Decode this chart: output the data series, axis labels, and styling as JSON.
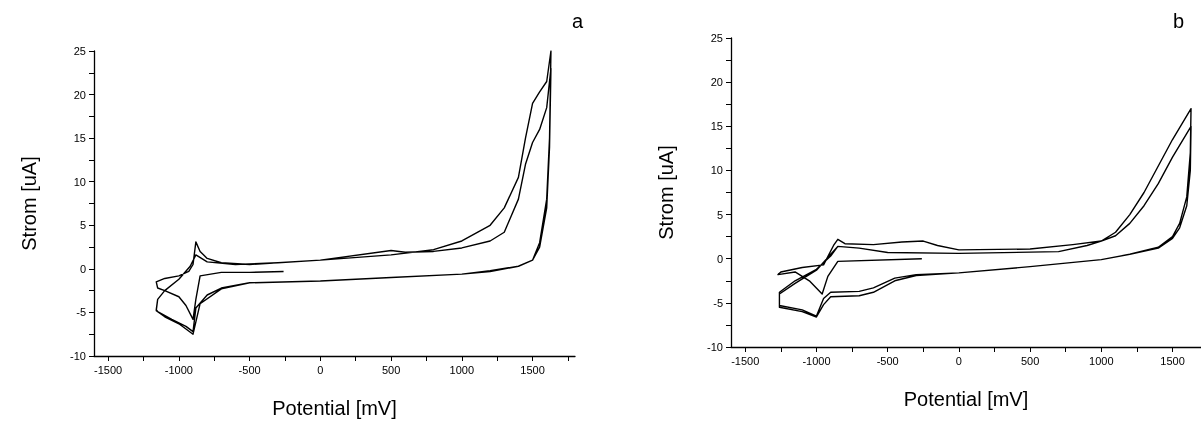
{
  "chart_data": [
    {
      "type": "line",
      "title": "a",
      "xlabel": "Potential [mV]",
      "ylabel": "Strom [uA]",
      "xlim": [
        -1600,
        1800
      ],
      "ylim": [
        -10,
        25
      ],
      "xticks": [
        -1500,
        {
          "value": -1250,
          "label": null
        },
        -1000,
        {
          "value": -750,
          "label": null
        },
        -500,
        {
          "value": -250,
          "label": null
        },
        0,
        {
          "value": 250,
          "label": null
        },
        500,
        {
          "value": 750,
          "label": null
        },
        1000,
        {
          "value": 1250,
          "label": null
        },
        1500,
        {
          "value": 1750,
          "label": null
        }
      ],
      "yticks": [
        -10,
        {
          "value": -7.5,
          "label": null
        },
        -5,
        {
          "value": -2.5,
          "label": null
        },
        0,
        {
          "value": 2.5,
          "label": null
        },
        5,
        {
          "value": 7.5,
          "label": null
        },
        10,
        {
          "value": 12.5,
          "label": null
        },
        15,
        {
          "value": 17.5,
          "label": null
        },
        20,
        {
          "value": 22.5,
          "label": null
        },
        25
      ],
      "grid": false,
      "marker": "none",
      "line_style": "solid",
      "series": [
        {
          "color": "#000000",
          "x": [
            -260,
            -500,
            -700,
            -850,
            -880,
            -900,
            -950,
            -1000,
            -1100,
            -1150,
            -1160,
            -1100,
            -1000,
            -930,
            -900,
            -880,
            -850,
            -800,
            -700,
            -500,
            0,
            500,
            800,
            1000,
            1200,
            1300,
            1400,
            1450,
            1500,
            1550,
            1600,
            1630,
            1620,
            1600,
            1550,
            1500,
            1400,
            1200,
            1000,
            500,
            0,
            -500,
            -700,
            -800,
            -880,
            -900,
            -950,
            -1050,
            -1150,
            -1160,
            -1150,
            -1100,
            -1000,
            -920,
            -880,
            -800,
            -600,
            -300,
            0,
            500,
            600,
            800,
            1000,
            1200,
            1300,
            1400,
            1450,
            1500,
            1550,
            1600,
            1630,
            1620,
            1600,
            1550,
            1500,
            1400,
            1200,
            1000,
            500,
            0,
            -500,
            -700,
            -850,
            -900,
            -1000,
            -1100,
            -1160,
            -1150,
            -1100,
            -1000,
            -920,
            -880
          ],
          "values": [
            -0.3,
            -0.4,
            -0.4,
            -0.8,
            -3.5,
            -5.8,
            -4.2,
            -3.2,
            -2.5,
            -2.2,
            -1.5,
            -1.1,
            -0.8,
            -0.3,
            0.5,
            3.1,
            2.0,
            1.2,
            0.7,
            0.5,
            1.0,
            1.6,
            2.2,
            3.2,
            5.0,
            7.0,
            10.5,
            15.0,
            19.0,
            20.3,
            21.5,
            25.0,
            15.0,
            8.0,
            3.0,
            1.0,
            0.3,
            -0.2,
            -0.6,
            -1.0,
            -1.4,
            -1.6,
            -2.2,
            -3.0,
            -4.5,
            -7.2,
            -6.6,
            -5.8,
            -4.9,
            -4.7,
            -3.5,
            -2.5,
            -1.2,
            0.3,
            1.6,
            0.8,
            0.5,
            0.7,
            1.0,
            2.1,
            1.9,
            2.0,
            2.4,
            3.2,
            4.2,
            8.0,
            12.0,
            14.5,
            16.0,
            18.5,
            23.0,
            14.0,
            7.0,
            2.5,
            1.0,
            0.3,
            -0.3,
            -0.6,
            -1.0,
            -1.4,
            -1.6,
            -2.3,
            -4.0,
            -7.5,
            -6.3,
            -5.5,
            -4.8,
            -3.5,
            -2.5,
            -1.2,
            0.3,
            1.6
          ]
        }
      ]
    },
    {
      "type": "line",
      "title": "b",
      "xlabel": "Potential [mV]",
      "ylabel": "Strom [uA]",
      "xlim": [
        -1600,
        1700
      ],
      "ylim": [
        -10,
        25
      ],
      "xticks": [
        -1500,
        {
          "value": -1250,
          "label": null
        },
        -1000,
        {
          "value": -750,
          "label": null
        },
        -500,
        {
          "value": -250,
          "label": null
        },
        0,
        {
          "value": 250,
          "label": null
        },
        500,
        {
          "value": 750,
          "label": null
        },
        1000,
        {
          "value": 1250,
          "label": null
        },
        1500
      ],
      "yticks": [
        -10,
        {
          "value": -7.5,
          "label": null
        },
        -5,
        {
          "value": -2.5,
          "label": null
        },
        0,
        {
          "value": 2.5,
          "label": null
        },
        5,
        {
          "value": 7.5,
          "label": null
        },
        10,
        {
          "value": 12.5,
          "label": null
        },
        15,
        {
          "value": 17.5,
          "label": null
        },
        20,
        {
          "value": 22.5,
          "label": null
        },
        25
      ],
      "grid": false,
      "marker": "none",
      "line_style": "solid",
      "series": [
        {
          "color": "#000000",
          "x": [
            -260,
            -850,
            -920,
            -960,
            -1050,
            -1150,
            -1270,
            -1250,
            -1100,
            -950,
            -880,
            -850,
            -800,
            -600,
            -400,
            -250,
            -150,
            0,
            500,
            800,
            1000,
            1100,
            1200,
            1300,
            1400,
            1500,
            1630,
            1625,
            1600,
            1550,
            1500,
            1400,
            1200,
            1000,
            500,
            0,
            -300,
            -450,
            -600,
            -700,
            -900,
            -950,
            -1000,
            -1100,
            -1260,
            -1260,
            -1150,
            -1000,
            -900,
            -850,
            -700,
            -500,
            0,
            700,
            900,
            1000,
            1100,
            1200,
            1300,
            1400,
            1500,
            1630,
            1625,
            1600,
            1550,
            1500,
            1400,
            1200,
            1000,
            500,
            0,
            -300,
            -450,
            -600,
            -700,
            -900,
            -950,
            -1000,
            -1100,
            -1260,
            -1260,
            -1150,
            -1000,
            -900,
            -850
          ],
          "values": [
            0,
            -0.3,
            -2,
            -4,
            -2.5,
            -1.5,
            -1.8,
            -1.5,
            -1.0,
            -0.7,
            1.5,
            2.2,
            1.7,
            1.6,
            1.9,
            2.0,
            1.5,
            1.0,
            1.1,
            1.6,
            2.0,
            3,
            5,
            7.5,
            10.5,
            13.5,
            17,
            12,
            7,
            4,
            2.5,
            1.3,
            0.5,
            -0.1,
            -0.9,
            -1.6,
            -1.8,
            -2.2,
            -3.3,
            -3.7,
            -3.8,
            -4.5,
            -6.5,
            -5.8,
            -5.3,
            -4,
            -2.8,
            -1.3,
            0.5,
            1.4,
            1.2,
            0.7,
            0.6,
            0.8,
            1.5,
            2.0,
            2.6,
            4,
            6,
            8.5,
            11.5,
            15,
            10,
            6,
            3.5,
            2.3,
            1.2,
            0.5,
            -0.1,
            -0.9,
            -1.6,
            -1.9,
            -2.5,
            -3.8,
            -4.2,
            -4.3,
            -5.2,
            -6.6,
            -6.0,
            -5.5,
            -3.8,
            -2.5,
            -1.2,
            0.3,
            1.4
          ]
        }
      ]
    }
  ]
}
